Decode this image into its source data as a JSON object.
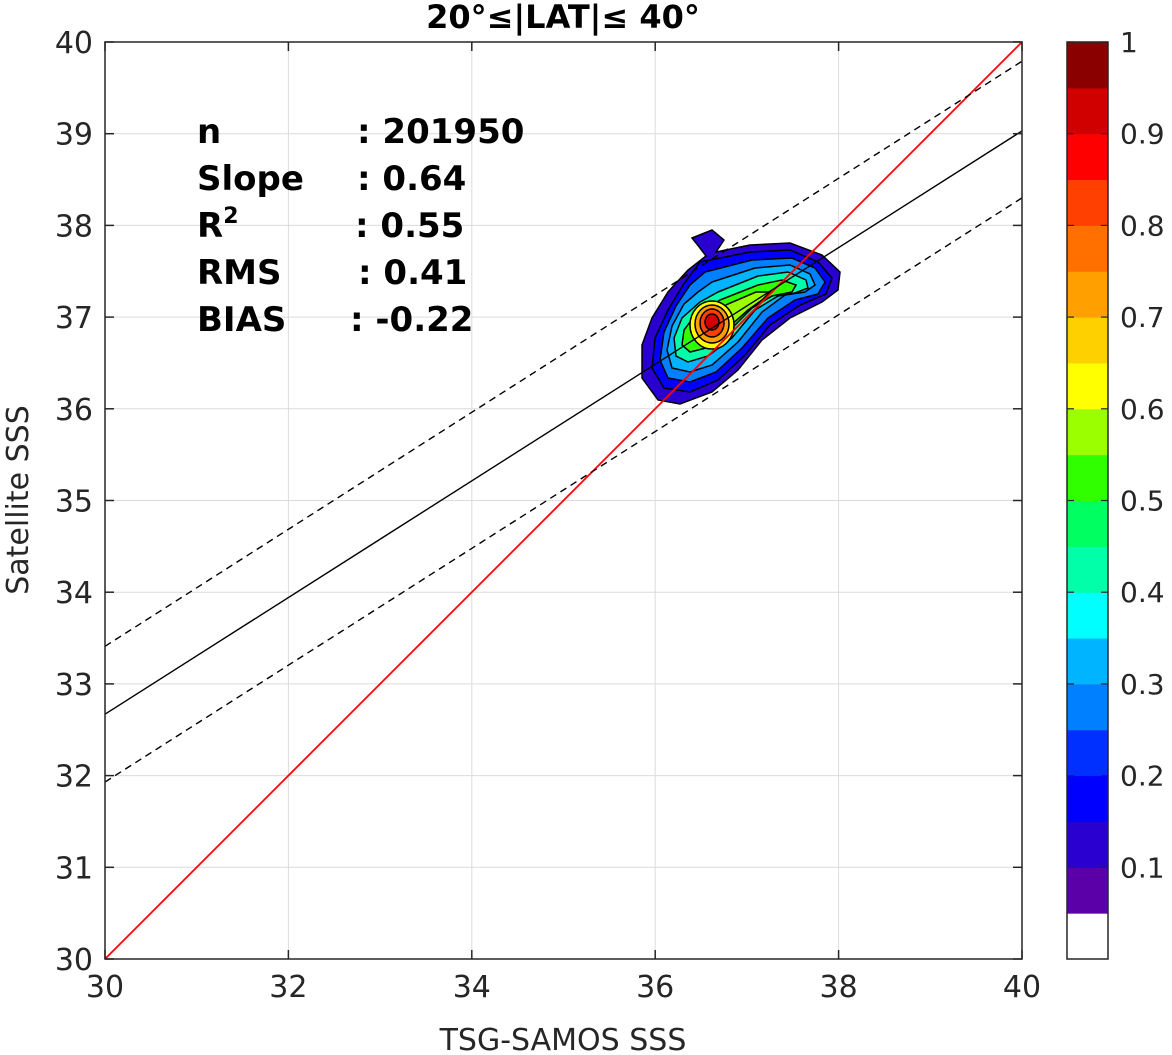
{
  "chart_data": {
    "type": "scatter",
    "title": "20°≤|LAT|≤ 40°",
    "xlabel": "TSG-SAMOS SSS",
    "ylabel": "Satellite SSS",
    "xlim": [
      30,
      40
    ],
    "ylim": [
      30,
      40
    ],
    "xticks": [
      "30",
      "32",
      "34",
      "36",
      "38",
      "40"
    ],
    "yticks": [
      "30",
      "31",
      "32",
      "33",
      "34",
      "35",
      "36",
      "37",
      "38",
      "39",
      "40"
    ],
    "grid": true,
    "stats": [
      {
        "label": "n",
        "value": ": 201950"
      },
      {
        "label": "Slope",
        "value": ": 0.64"
      },
      {
        "label": "R",
        "sup": "2",
        "value": ": 0.55"
      },
      {
        "label": "RMS",
        "value": ": 0.41"
      },
      {
        "label": "BIAS",
        "value": ": -0.22"
      }
    ],
    "lines": [
      {
        "type": "one-to-one",
        "color": "#ff0000",
        "x": [
          30,
          40
        ],
        "y": [
          30,
          40
        ]
      },
      {
        "type": "regression",
        "color": "#000000",
        "style": "solid",
        "x": [
          30,
          40
        ],
        "y": [
          32.67,
          39.03
        ]
      },
      {
        "type": "upper-bound",
        "color": "#000000",
        "style": "dashed",
        "x": [
          30,
          40
        ],
        "y": [
          33.41,
          39.79
        ]
      },
      {
        "type": "lower-bound",
        "color": "#000000",
        "style": "dashed",
        "x": [
          30,
          40
        ],
        "y": [
          31.93,
          38.3
        ]
      }
    ],
    "density_peak": {
      "x": 36.63,
      "y": 36.9
    },
    "colorbar": {
      "ticks": [
        "0.1",
        "0.2",
        "0.3",
        "0.4",
        "0.5",
        "0.6",
        "0.7",
        "0.8",
        "0.9",
        "1"
      ],
      "colors": [
        "#ffffff",
        "#5b00a8",
        "#2a00d0",
        "#0000ff",
        "#0030ff",
        "#0080ff",
        "#00b4ff",
        "#00ffff",
        "#00ffa8",
        "#00ff60",
        "#30ff00",
        "#9cff00",
        "#ffff00",
        "#ffd000",
        "#ffa000",
        "#ff7000",
        "#ff4000",
        "#ff0000",
        "#d00000",
        "#8a0000"
      ]
    }
  }
}
